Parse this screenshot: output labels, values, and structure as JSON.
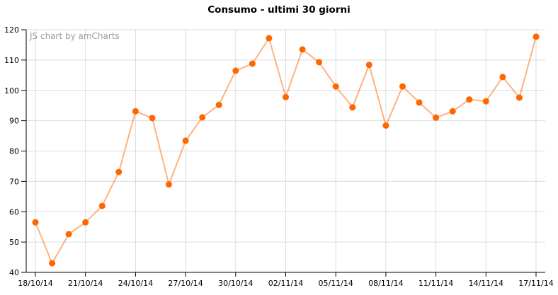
{
  "title": "Consumo - ultimi 30 giorni",
  "watermark": "JS chart by amCharts",
  "colors": {
    "bullet": "#FF6600",
    "line": "#FF6600",
    "line_alpha": 0.5,
    "grid": "#DBDBDB",
    "axis": "#000000",
    "label": "#000000",
    "watermark": "#9B9B9B",
    "background": "#FFFFFF"
  },
  "chart_data": {
    "type": "line",
    "title": "Consumo - ultimi 30 giorni",
    "xlabel": "",
    "ylabel": "",
    "x": [
      "18/10/14",
      "19/10/14",
      "20/10/14",
      "21/10/14",
      "22/10/14",
      "23/10/14",
      "24/10/14",
      "25/10/14",
      "26/10/14",
      "27/10/14",
      "28/10/14",
      "29/10/14",
      "30/10/14",
      "31/10/14",
      "01/11/14",
      "02/11/14",
      "03/11/14",
      "04/11/14",
      "05/11/14",
      "06/11/14",
      "07/11/14",
      "08/11/14",
      "09/11/14",
      "10/11/14",
      "11/11/14",
      "12/11/14",
      "13/11/14",
      "14/11/14",
      "15/11/14",
      "16/11/14",
      "17/11/14"
    ],
    "values": [
      56.5,
      43.0,
      52.6,
      56.5,
      61.9,
      73.1,
      93.1,
      90.9,
      69.0,
      83.4,
      91.1,
      95.2,
      106.5,
      108.8,
      117.2,
      97.8,
      113.5,
      109.3,
      101.3,
      94.4,
      108.4,
      88.4,
      101.3,
      96.0,
      91.0,
      93.1,
      97.0,
      96.4,
      104.4,
      97.6,
      117.7
    ],
    "x_tick_every": 3,
    "x_tick_labels": [
      "18/10/14",
      "21/10/14",
      "24/10/14",
      "27/10/14",
      "30/10/14",
      "02/11/14",
      "05/11/14",
      "08/11/14",
      "11/11/14",
      "14/11/14",
      "17/11/14"
    ],
    "y_ticks": [
      40,
      50,
      60,
      70,
      80,
      90,
      100,
      110,
      120
    ],
    "ylim": [
      40,
      120
    ],
    "grid": true,
    "legend": false
  }
}
